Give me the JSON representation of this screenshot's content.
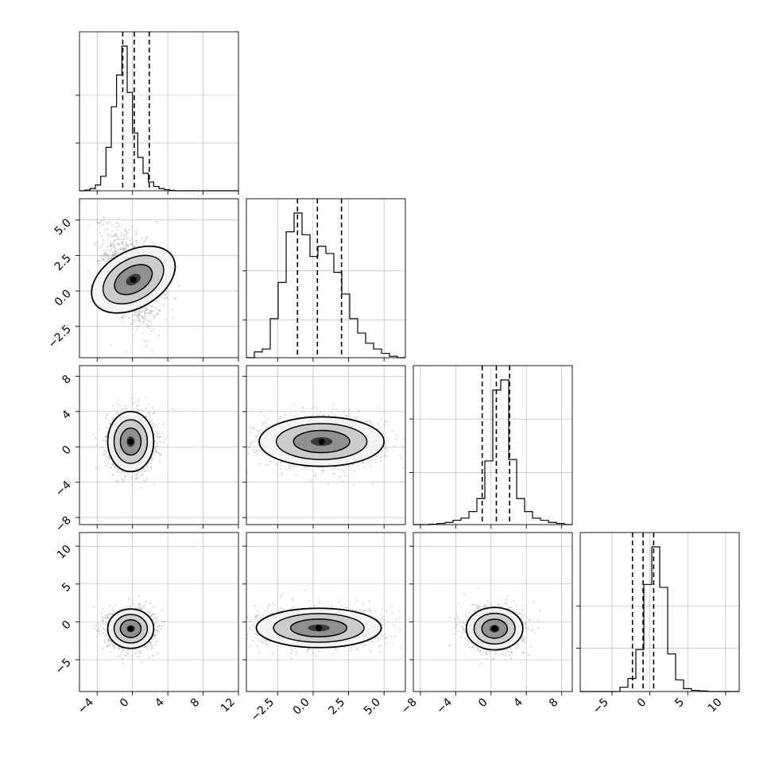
{
  "chart_data": {
    "type": "corner",
    "figure": "corner plot of 4 parameters: 1D marginal histograms on the diagonal with dashed quantile lines, 2D scatter/density with contours below the diagonal",
    "grid": true,
    "colors": {
      "line": "#000000",
      "grid": "#b0b0b0",
      "scatter": "#9a9a9a"
    },
    "parameters": [
      {
        "range": [
          -6,
          12
        ],
        "ticks": [
          -4,
          0,
          4,
          8,
          12
        ],
        "tick_labels": [
          "−4",
          "0",
          "4",
          "8",
          "12"
        ],
        "mu": 0.3,
        "sigma": 1.55,
        "quantiles": [
          -1.1,
          0.2,
          1.9
        ],
        "histogram": [
          0,
          0.005,
          0.015,
          0.04,
          0.1,
          0.3,
          0.58,
          0.8,
          1.0,
          0.68,
          0.4,
          0.23,
          0.12,
          0.06,
          0.03,
          0.015,
          0.008,
          0.003,
          0,
          0,
          0,
          0,
          0,
          0,
          0,
          0,
          0,
          0,
          0,
          0
        ],
        "hist_yticks": [
          0.33,
          0.66
        ]
      },
      {
        "range": [
          -4.7,
          6.5
        ],
        "ticks": [
          -2.5,
          0,
          2.5,
          5.0
        ],
        "tick_labels": [
          "−2.5",
          "0.0",
          "2.5",
          "5.0"
        ],
        "mu": 0.4,
        "sigma": 1.25,
        "quantiles": [
          -1.1,
          0.3,
          2.0
        ],
        "histogram": [
          0.0,
          0.04,
          0.06,
          0.27,
          0.52,
          0.87,
          1.0,
          0.85,
          0.7,
          0.77,
          0.72,
          0.59,
          0.44,
          0.27,
          0.17,
          0.1,
          0.06,
          0.03,
          0.01,
          0.0
        ],
        "hist_yticks": [
          0.26,
          0.6
        ]
      },
      {
        "range": [
          -8.8,
          9.2
        ],
        "ticks": [
          -8,
          -4,
          0,
          4,
          8
        ],
        "tick_labels": [
          "−8",
          "−4",
          "0",
          "4",
          "8"
        ],
        "mu": 0.5,
        "sigma": 1.6,
        "quantiles": [
          -1.0,
          0.6,
          2.1
        ],
        "histogram": [
          0,
          0,
          0.003,
          0.008,
          0.015,
          0.03,
          0.045,
          0.09,
          0.18,
          0.44,
          0.93,
          1.0,
          0.45,
          0.18,
          0.09,
          0.045,
          0.03,
          0.015,
          0.008,
          0
        ],
        "hist_yticks": [
          0.36,
          0.73
        ]
      },
      {
        "range": [
          -9.2,
          11.8
        ],
        "ticks": [
          -5,
          0,
          5,
          10
        ],
        "tick_labels": [
          "−5",
          "0",
          "5",
          "10"
        ],
        "mu": -0.9,
        "sigma": 1.45,
        "quantiles": [
          -2.3,
          -0.9,
          0.5
        ],
        "histogram": [
          0,
          0,
          0,
          0,
          0,
          0.03,
          0.09,
          0.29,
          0.74,
          1.0,
          0.72,
          0.26,
          0.08,
          0.02,
          0.008,
          0.004,
          0,
          0,
          0,
          0
        ],
        "hist_yticks": [
          0.3,
          0.59
        ]
      }
    ],
    "pairs": [
      {
        "x": 0,
        "y": 1,
        "x_center": 0.1,
        "y_center": 0.8,
        "sx": 1.6,
        "sy": 1.6,
        "rho": -0.45,
        "style": "banana"
      },
      {
        "x": 0,
        "y": 2,
        "x_center": -0.2,
        "y_center": 0.6,
        "sx": 1.3,
        "sy": 1.7,
        "rho": 0.0,
        "style": "round"
      },
      {
        "x": 1,
        "y": 2,
        "x_center": 0.6,
        "y_center": 0.6,
        "sx": 2.2,
        "sy": 1.4,
        "rho": -0.05,
        "style": "wide"
      },
      {
        "x": 0,
        "y": 3,
        "x_center": -0.2,
        "y_center": -0.9,
        "sx": 1.3,
        "sy": 1.3,
        "rho": 0.0,
        "style": "round"
      },
      {
        "x": 1,
        "y": 3,
        "x_center": 0.4,
        "y_center": -0.8,
        "sx": 2.2,
        "sy": 1.3,
        "rho": 0.0,
        "style": "wide"
      },
      {
        "x": 2,
        "y": 3,
        "x_center": 0.4,
        "y_center": -0.9,
        "sx": 1.6,
        "sy": 1.4,
        "rho": 0.0,
        "style": "round"
      }
    ],
    "rows_y_axis": [
      {
        "row": 1,
        "param": 1,
        "ticks": [
          -2.5,
          0,
          2.5,
          5.0
        ],
        "tick_labels": [
          "−2.5",
          "0.0",
          "2.5",
          "5.0"
        ]
      },
      {
        "row": 2,
        "param": 2,
        "ticks": [
          -8,
          -4,
          0,
          4,
          8
        ],
        "tick_labels": [
          "−8",
          "−4",
          "0",
          "4",
          "8"
        ]
      },
      {
        "row": 3,
        "param": 3,
        "ticks": [
          -5,
          0,
          5,
          10
        ],
        "tick_labels": [
          "−5",
          "0",
          "5",
          "10"
        ]
      }
    ]
  }
}
